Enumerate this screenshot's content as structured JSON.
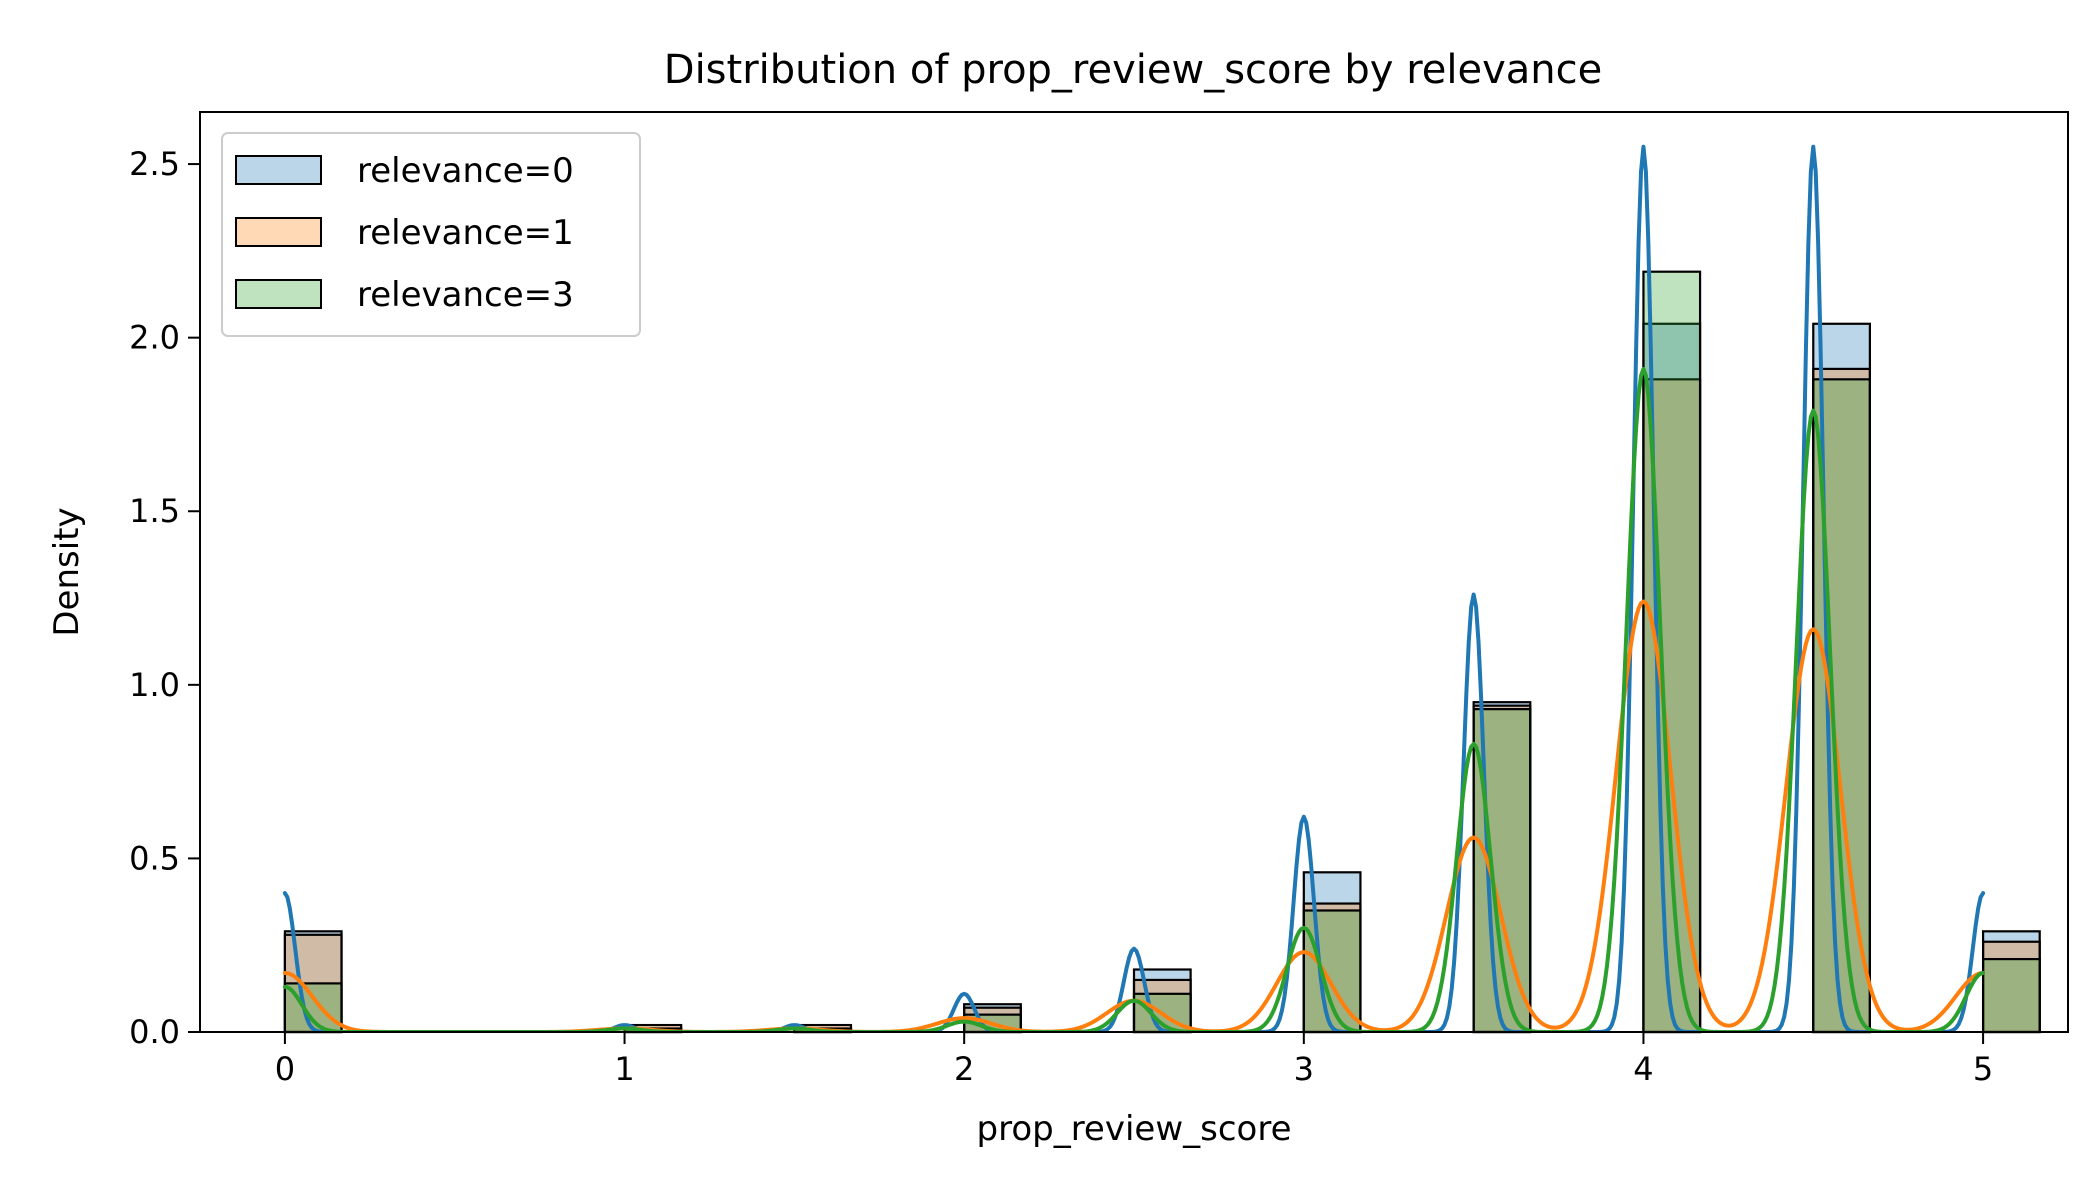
{
  "chart_data": {
    "type": "bar",
    "title": "Distribution of prop_review_score by relevance",
    "xlabel": "prop_review_score",
    "ylabel": "Density",
    "xlim": [
      -0.25,
      5.25
    ],
    "ylim": [
      0,
      2.65
    ],
    "xticks": [
      0,
      1,
      2,
      3,
      4,
      5
    ],
    "xtick_labels": [
      "0",
      "1",
      "2",
      "3",
      "4",
      "5"
    ],
    "yticks": [
      0,
      0.5,
      1,
      1.5,
      2,
      2.5
    ],
    "ytick_labels": [
      "0.0",
      "0.5",
      "1.0",
      "1.5",
      "2.0",
      "2.5"
    ],
    "bin_width": 0.1667,
    "grid": false,
    "legend_position": "top-left",
    "series": [
      {
        "name": "relevance=0",
        "color": "#1f77b4",
        "bins": [
          {
            "x": 0,
            "density": 0.29
          },
          {
            "x": 1,
            "density": 0.01
          },
          {
            "x": 1.5,
            "density": 0.01
          },
          {
            "x": 2,
            "density": 0.08
          },
          {
            "x": 2.5,
            "density": 0.18
          },
          {
            "x": 3,
            "density": 0.46
          },
          {
            "x": 3.5,
            "density": 0.95
          },
          {
            "x": 4,
            "density": 2.04
          },
          {
            "x": 4.5,
            "density": 2.04
          },
          {
            "x": 5,
            "density": 0.29
          }
        ],
        "kde_peaks": [
          {
            "x": 0,
            "y": 0.4
          },
          {
            "x": 1,
            "y": 0.02
          },
          {
            "x": 1.5,
            "y": 0.02
          },
          {
            "x": 2,
            "y": 0.11
          },
          {
            "x": 2.5,
            "y": 0.24
          },
          {
            "x": 3,
            "y": 0.62
          },
          {
            "x": 3.5,
            "y": 1.26
          },
          {
            "x": 4,
            "y": 2.55
          },
          {
            "x": 4.5,
            "y": 2.55
          },
          {
            "x": 5,
            "y": 0.4
          }
        ],
        "kde_sigma": 0.03
      },
      {
        "name": "relevance=1",
        "color": "#ff7f0e",
        "bins": [
          {
            "x": 0,
            "density": 0.28
          },
          {
            "x": 1,
            "density": 0.02
          },
          {
            "x": 1.5,
            "density": 0.02
          },
          {
            "x": 2,
            "density": 0.07
          },
          {
            "x": 2.5,
            "density": 0.15
          },
          {
            "x": 3,
            "density": 0.37
          },
          {
            "x": 3.5,
            "density": 0.94
          },
          {
            "x": 4,
            "density": 1.88
          },
          {
            "x": 4.5,
            "density": 1.91
          },
          {
            "x": 5,
            "density": 0.26
          }
        ],
        "kde_peaks": [
          {
            "x": 0,
            "y": 0.17
          },
          {
            "x": 1,
            "y": 0.01
          },
          {
            "x": 1.5,
            "y": 0.01
          },
          {
            "x": 2,
            "y": 0.04
          },
          {
            "x": 2.5,
            "y": 0.09
          },
          {
            "x": 3,
            "y": 0.23
          },
          {
            "x": 3.5,
            "y": 0.56
          },
          {
            "x": 4,
            "y": 1.24
          },
          {
            "x": 4.5,
            "y": 1.16
          },
          {
            "x": 5,
            "y": 0.17
          }
        ],
        "kde_sigma": 0.08
      },
      {
        "name": "relevance=3",
        "color": "#2ca02c",
        "bins": [
          {
            "x": 0,
            "density": 0.14
          },
          {
            "x": 1,
            "density": 0.01
          },
          {
            "x": 1.5,
            "density": 0.01
          },
          {
            "x": 2,
            "density": 0.05
          },
          {
            "x": 2.5,
            "density": 0.11
          },
          {
            "x": 3,
            "density": 0.35
          },
          {
            "x": 3.5,
            "density": 0.93
          },
          {
            "x": 4,
            "density": 2.19
          },
          {
            "x": 4.5,
            "density": 1.88
          },
          {
            "x": 5,
            "density": 0.21
          }
        ],
        "kde_peaks": [
          {
            "x": 0,
            "y": 0.13
          },
          {
            "x": 1,
            "y": 0.01
          },
          {
            "x": 1.5,
            "y": 0.01
          },
          {
            "x": 2,
            "y": 0.03
          },
          {
            "x": 2.5,
            "y": 0.09
          },
          {
            "x": 3,
            "y": 0.3
          },
          {
            "x": 3.5,
            "y": 0.83
          },
          {
            "x": 4,
            "y": 1.91
          },
          {
            "x": 4.5,
            "y": 1.79
          },
          {
            "x": 5,
            "y": 0.17
          }
        ],
        "kde_sigma": 0.05
      }
    ]
  }
}
